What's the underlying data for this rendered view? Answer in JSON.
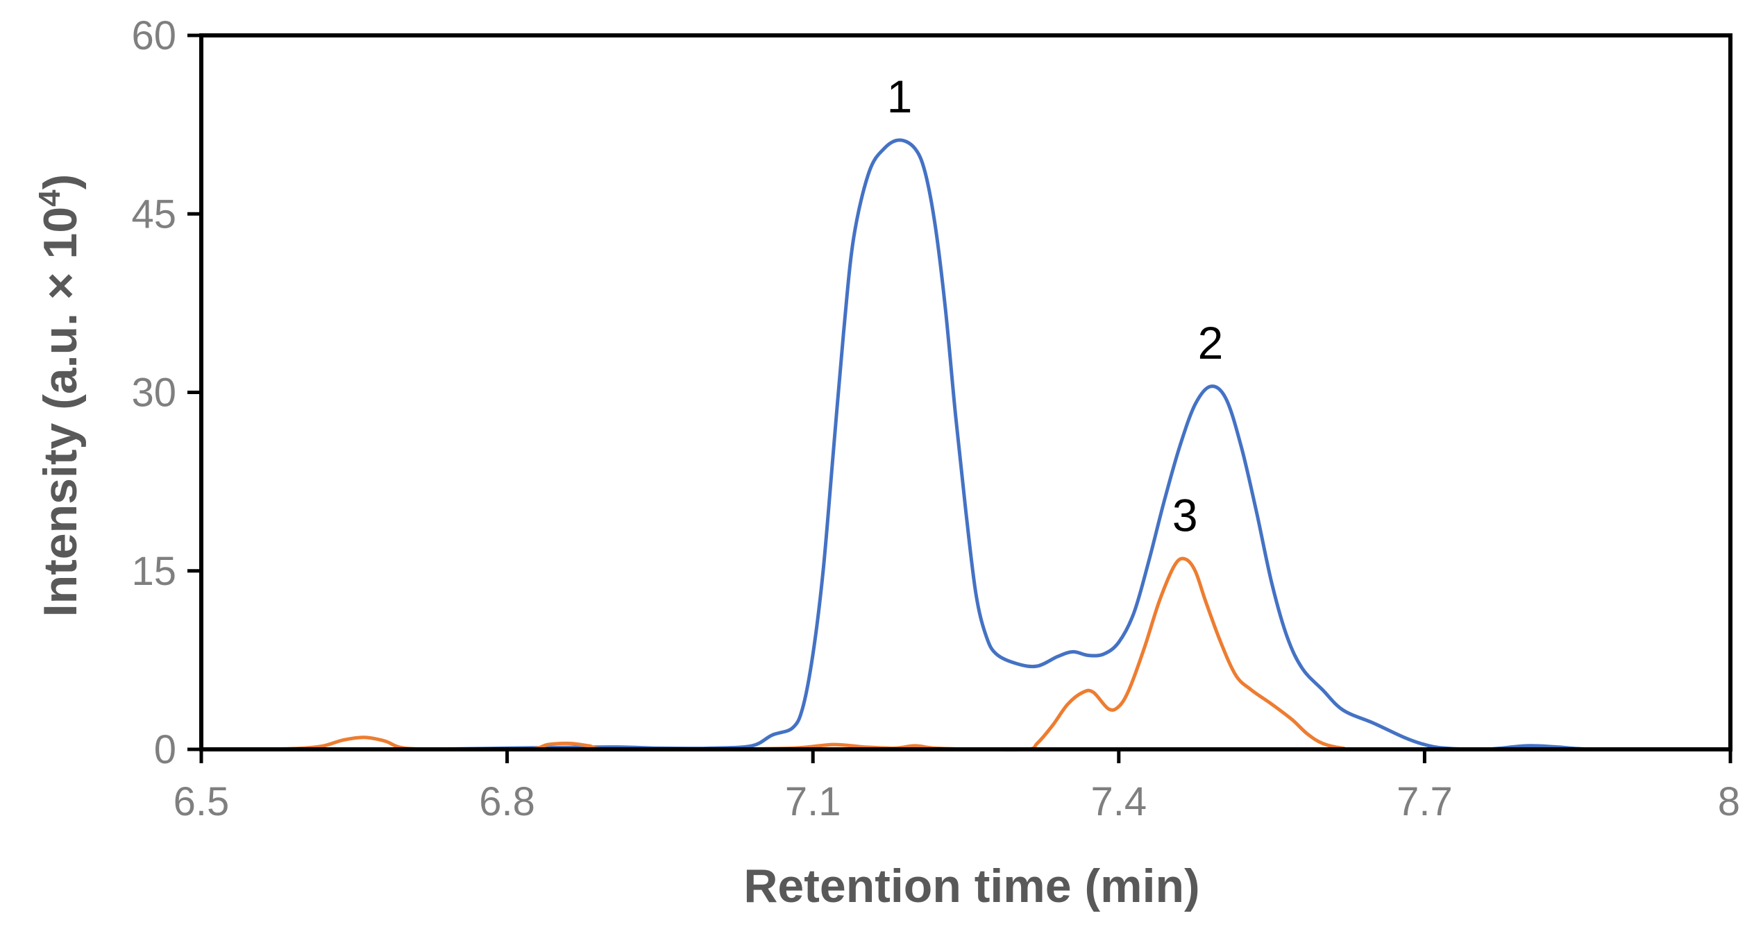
{
  "chart_data": {
    "type": "line",
    "xlabel": "Retention time (min)",
    "ylabel": {
      "main": "Intensity (a.u. × 10",
      "superscript": "4",
      "close": ")"
    },
    "xlim": [
      6.5,
      8.0
    ],
    "ylim": [
      0,
      60
    ],
    "x_ticks": [
      6.5,
      6.8,
      7.1,
      7.4,
      7.7,
      8.0
    ],
    "x_tick_labels": [
      "6.5",
      "6.8",
      "7.1",
      "7.4",
      "7.7",
      "8"
    ],
    "y_ticks": [
      0,
      15,
      30,
      45,
      60
    ],
    "y_tick_labels": [
      "0",
      "15",
      "30",
      "45",
      "60"
    ],
    "grid": false,
    "series": [
      {
        "color": "#4472c4",
        "points": [
          [
            6.72,
            0
          ],
          [
            6.8,
            0.1
          ],
          [
            6.9,
            0.2
          ],
          [
            6.95,
            0.1
          ],
          [
            7.0,
            0.1
          ],
          [
            7.04,
            0.3
          ],
          [
            7.06,
            1.2
          ],
          [
            7.08,
            1.8
          ],
          [
            7.09,
            3.5
          ],
          [
            7.1,
            8
          ],
          [
            7.11,
            15
          ],
          [
            7.12,
            25
          ],
          [
            7.13,
            35
          ],
          [
            7.14,
            43
          ],
          [
            7.155,
            48.5
          ],
          [
            7.17,
            50.5
          ],
          [
            7.185,
            51.2
          ],
          [
            7.2,
            50.5
          ],
          [
            7.21,
            48.5
          ],
          [
            7.22,
            44
          ],
          [
            7.23,
            37
          ],
          [
            7.24,
            28
          ],
          [
            7.25,
            20
          ],
          [
            7.26,
            13
          ],
          [
            7.27,
            9.5
          ],
          [
            7.28,
            8
          ],
          [
            7.3,
            7.2
          ],
          [
            7.32,
            7.0
          ],
          [
            7.34,
            7.8
          ],
          [
            7.355,
            8.2
          ],
          [
            7.37,
            7.9
          ],
          [
            7.385,
            8.0
          ],
          [
            7.4,
            9.0
          ],
          [
            7.415,
            11.5
          ],
          [
            7.43,
            16
          ],
          [
            7.445,
            21
          ],
          [
            7.46,
            25.5
          ],
          [
            7.475,
            29
          ],
          [
            7.49,
            30.5
          ],
          [
            7.505,
            29.5
          ],
          [
            7.52,
            25.5
          ],
          [
            7.535,
            20
          ],
          [
            7.55,
            14
          ],
          [
            7.565,
            9.5
          ],
          [
            7.58,
            6.8
          ],
          [
            7.6,
            5
          ],
          [
            7.62,
            3.3
          ],
          [
            7.65,
            2.2
          ],
          [
            7.68,
            1.0
          ],
          [
            7.7,
            0.4
          ],
          [
            7.72,
            0.1
          ],
          [
            7.76,
            0
          ],
          [
            7.8,
            0.3
          ],
          [
            7.83,
            0.2
          ],
          [
            7.87,
            0
          ],
          [
            8.0,
            0
          ]
        ]
      },
      {
        "color": "#ed7d31",
        "points": [
          [
            6.57,
            0
          ],
          [
            6.6,
            0.1
          ],
          [
            6.62,
            0.3
          ],
          [
            6.64,
            0.8
          ],
          [
            6.66,
            1.0
          ],
          [
            6.68,
            0.7
          ],
          [
            6.7,
            0.1
          ],
          [
            6.75,
            0
          ],
          [
            6.82,
            0
          ],
          [
            6.84,
            0.4
          ],
          [
            6.86,
            0.5
          ],
          [
            6.88,
            0.3
          ],
          [
            6.9,
            0
          ],
          [
            7.0,
            0
          ],
          [
            7.08,
            0.1
          ],
          [
            7.12,
            0.4
          ],
          [
            7.15,
            0.2
          ],
          [
            7.18,
            0.1
          ],
          [
            7.2,
            0.3
          ],
          [
            7.22,
            0.1
          ],
          [
            7.26,
            0
          ],
          [
            7.31,
            0
          ],
          [
            7.32,
            0.5
          ],
          [
            7.335,
            2
          ],
          [
            7.35,
            3.8
          ],
          [
            7.365,
            4.8
          ],
          [
            7.375,
            4.8
          ],
          [
            7.39,
            3.4
          ],
          [
            7.4,
            3.6
          ],
          [
            7.41,
            5
          ],
          [
            7.425,
            8.5
          ],
          [
            7.44,
            12.5
          ],
          [
            7.455,
            15.5
          ],
          [
            7.465,
            16
          ],
          [
            7.475,
            15
          ],
          [
            7.485,
            12.5
          ],
          [
            7.5,
            9
          ],
          [
            7.515,
            6.2
          ],
          [
            7.53,
            5
          ],
          [
            7.55,
            3.8
          ],
          [
            7.57,
            2.5
          ],
          [
            7.585,
            1.3
          ],
          [
            7.6,
            0.5
          ],
          [
            7.62,
            0.1
          ],
          [
            7.65,
            0
          ],
          [
            8.0,
            0
          ]
        ]
      }
    ],
    "annotations": [
      {
        "text": "1",
        "x": 7.185,
        "y": 51.2
      },
      {
        "text": "2",
        "x": 7.49,
        "y": 30.5
      },
      {
        "text": "3",
        "x": 7.465,
        "y": 16.0
      }
    ]
  }
}
